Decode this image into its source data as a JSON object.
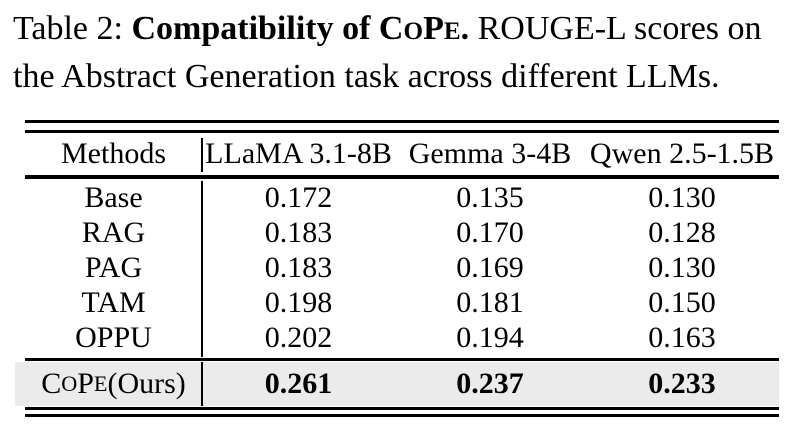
{
  "caption": {
    "line1": {
      "prefix": "Table 2: ",
      "bold_pre": "Compatibility of ",
      "bold_period": ".",
      "rest": " ROUGE-L scores on"
    },
    "line2": "the Abstract Generation task across different LLMs.",
    "cope": [
      "C",
      "O",
      "P",
      "E"
    ]
  },
  "table": {
    "header": {
      "methods": "Methods",
      "columns": [
        "LLaMA 3.1-8B",
        "Gemma 3-4B",
        "Qwen 2.5-1.5B"
      ]
    },
    "rows": [
      {
        "method": "Base",
        "values": [
          "0.172",
          "0.135",
          "0.130"
        ]
      },
      {
        "method": "RAG",
        "values": [
          "0.183",
          "0.170",
          "0.128"
        ]
      },
      {
        "method": "PAG",
        "values": [
          "0.183",
          "0.169",
          "0.130"
        ]
      },
      {
        "method": "TAM",
        "values": [
          "0.198",
          "0.181",
          "0.150"
        ]
      },
      {
        "method": "OPPU",
        "values": [
          "0.202",
          "0.194",
          "0.163"
        ]
      }
    ],
    "highlight_row": {
      "cope": [
        "C",
        "O",
        "P",
        "E"
      ],
      "suffix": " (Ours)",
      "values": [
        "0.261",
        "0.237",
        "0.233"
      ]
    }
  },
  "colors": {
    "text": "#000000",
    "highlight_bg": "#ebebeb",
    "rule": "#000000"
  }
}
